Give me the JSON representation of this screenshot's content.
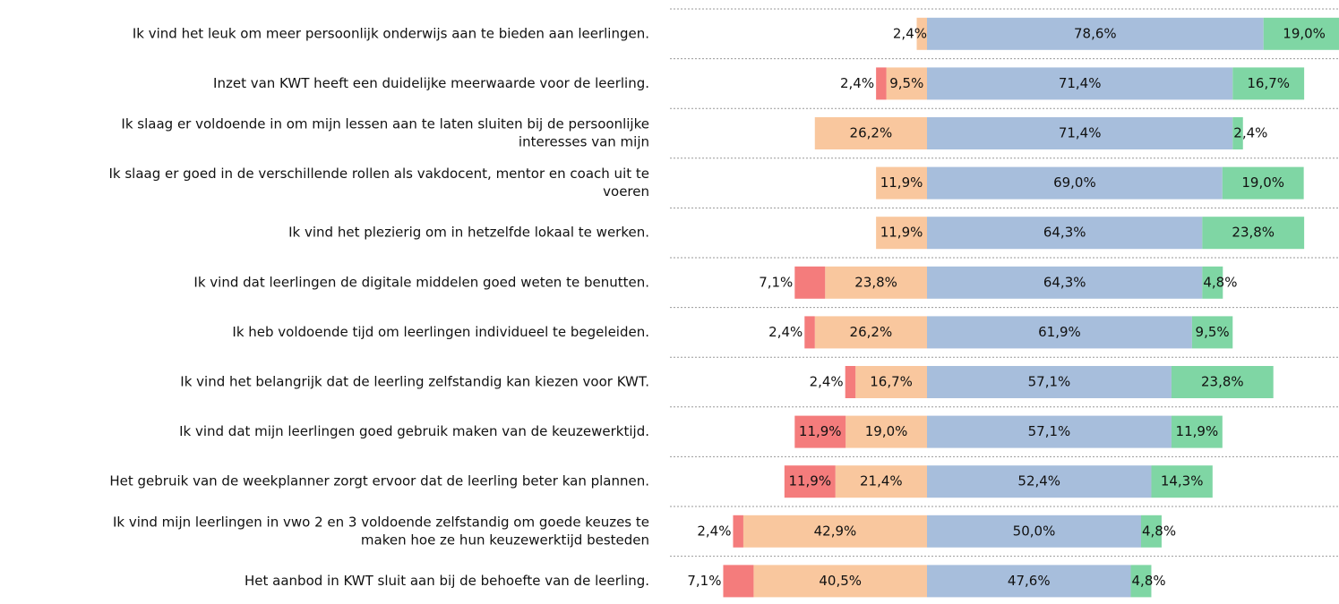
{
  "chart_data": {
    "type": "diverging_bar",
    "categories": [
      "Ik vind het leuk om meer persoonlijk onderwijs aan te bieden aan leerlingen.",
      "Inzet van KWT heeft een duidelijke meerwaarde voor de leerling.",
      [
        "Ik slaag er voldoende in om mijn lessen aan te laten sluiten bij de persoonlijke",
        "interesses van mijn"
      ],
      [
        "Ik slaag er goed in de verschillende rollen als vakdocent, mentor en coach uit te",
        "voeren"
      ],
      "Ik vind het plezierig om in hetzelfde lokaal te werken.",
      "Ik vind dat leerlingen de digitale middelen goed weten te benutten.",
      "Ik heb voldoende tijd om leerlingen individueel te begeleiden.",
      "Ik vind het belangrijk dat de leerling zelfstandig kan kiezen voor KWT.",
      "Ik vind dat mijn leerlingen goed gebruik maken van de keuzewerktijd.",
      "Het gebruik van de weekplanner zorgt ervoor dat de leerling beter kan plannen.",
      [
        "Ik vind mijn leerlingen in vwo 2 en 3 voldoende zelfstandig om goede keuzes te",
        "maken hoe ze hun keuzewerktijd besteden"
      ],
      "Het aanbod in KWT sluit aan bij de behoefte van de leerling."
    ],
    "series": [
      {
        "color": "#f47c7c",
        "side": "negative",
        "values": [
          null,
          2.4,
          null,
          null,
          null,
          7.1,
          2.4,
          2.4,
          11.9,
          11.9,
          2.4,
          7.1
        ],
        "value_labels": [
          null,
          "2,4%",
          null,
          null,
          null,
          "7,1%",
          "2,4%",
          "2,4%",
          "11,9%",
          "11,9%",
          "2,4%",
          "7,1%"
        ]
      },
      {
        "color": "#f9c79e",
        "side": "negative",
        "values": [
          2.4,
          9.5,
          26.2,
          11.9,
          11.9,
          23.8,
          26.2,
          16.7,
          19.0,
          21.4,
          42.9,
          40.5
        ],
        "value_labels": [
          "2,4%",
          "9,5%",
          "26,2%",
          "11,9%",
          "11,9%",
          "23,8%",
          "26,2%",
          "16,7%",
          "19,0%",
          "21,4%",
          "42,9%",
          "40,5%"
        ]
      },
      {
        "color": "#a7bedc",
        "side": "positive",
        "values": [
          78.6,
          71.4,
          71.4,
          69.0,
          64.3,
          64.3,
          61.9,
          57.1,
          57.1,
          52.4,
          50.0,
          47.6
        ],
        "value_labels": [
          "78,6%",
          "71,4%",
          "71,4%",
          "69,0%",
          "64,3%",
          "64,3%",
          "61,9%",
          "57,1%",
          "57,1%",
          "52,4%",
          "50,0%",
          "47,6%"
        ]
      },
      {
        "color": "#7fd6a4",
        "side": "positive",
        "values": [
          19.0,
          16.7,
          2.4,
          19.0,
          23.8,
          4.8,
          9.5,
          23.8,
          11.9,
          14.3,
          4.8,
          4.8
        ],
        "value_labels": [
          "19,0%",
          "16,7%",
          "2,4%",
          "19,0%",
          "23,8%",
          "4,8%",
          "9,5%",
          "23,8%",
          "11,9%",
          "14,3%",
          "4,8%",
          "4,8%"
        ]
      }
    ]
  }
}
